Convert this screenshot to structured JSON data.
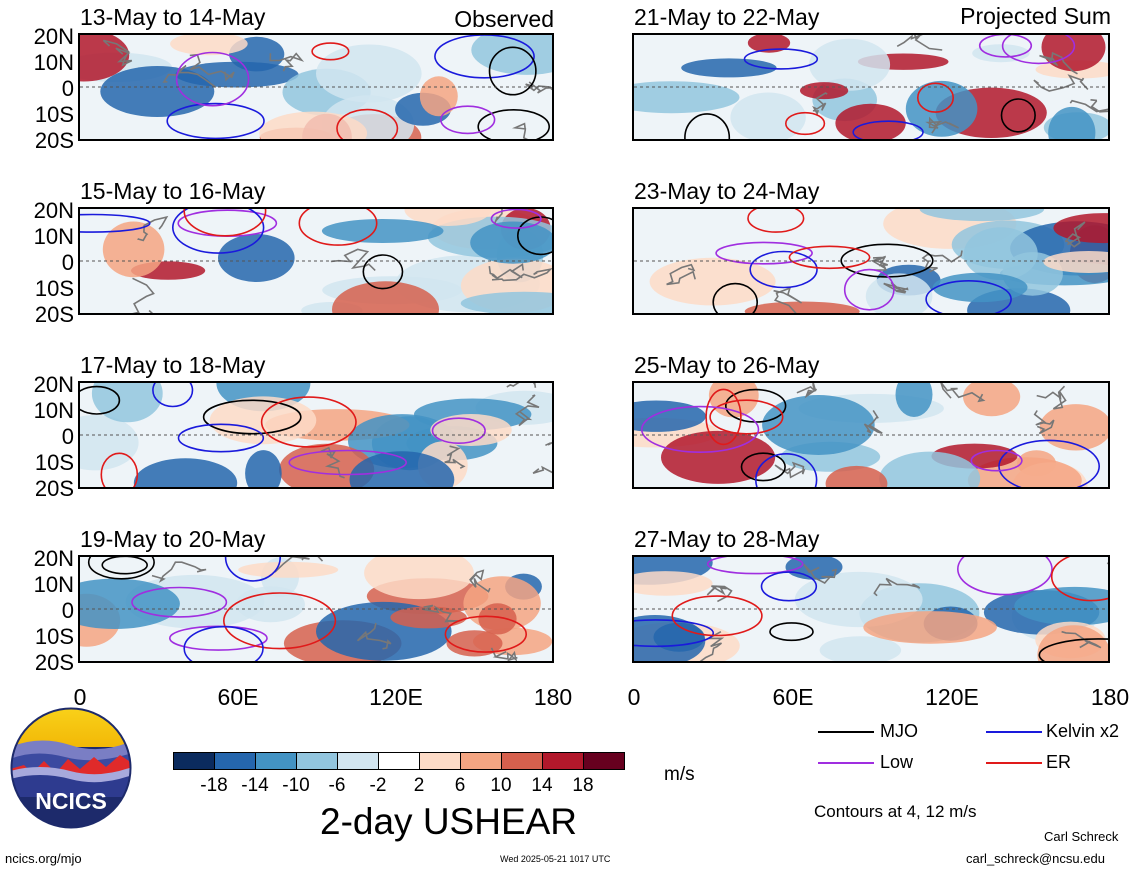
{
  "headers": {
    "left": "Observed",
    "right": "Projected Sum"
  },
  "panels": [
    {
      "title": "13-May to 14-May",
      "column": "left",
      "row": 0
    },
    {
      "title": "15-May to 16-May",
      "column": "left",
      "row": 1
    },
    {
      "title": "17-May to 18-May",
      "column": "left",
      "row": 2
    },
    {
      "title": "19-May to 20-May",
      "column": "left",
      "row": 3
    },
    {
      "title": "21-May to 22-May",
      "column": "right",
      "row": 0
    },
    {
      "title": "23-May to 24-May",
      "column": "right",
      "row": 1
    },
    {
      "title": "25-May to 26-May",
      "column": "right",
      "row": 2
    },
    {
      "title": "27-May to 28-May",
      "column": "right",
      "row": 3
    }
  ],
  "lat_labels": [
    "20N",
    "10N",
    "0",
    "10S",
    "20S"
  ],
  "lon_labels": [
    "0",
    "60E",
    "120E",
    "180"
  ],
  "colorbar": {
    "unit": "m/s",
    "ticks": [
      "-18",
      "-14",
      "-10",
      "-6",
      "-2",
      "2",
      "6",
      "10",
      "14",
      "18"
    ],
    "colors": [
      "#0b2b5e",
      "#2566ad",
      "#4393c4",
      "#92c5de",
      "#d1e5f0",
      "#ffffff",
      "#fddbc7",
      "#f4a582",
      "#d6604d",
      "#b2182b",
      "#67001f"
    ]
  },
  "legend": {
    "items": [
      {
        "label": "MJO",
        "color": "#000000"
      },
      {
        "label": "Kelvin x2",
        "color": "#1a1adc"
      },
      {
        "label": "Low",
        "color": "#a02ee0"
      },
      {
        "label": "ER",
        "color": "#e01a1a"
      }
    ],
    "contours_note": "Contours at 4, 12 m/s"
  },
  "title": "2-day USHEAR",
  "logo": {
    "text": "NCICS"
  },
  "footer": {
    "url": "ncics.org/mjo",
    "timestamp": "Wed 2025-05-21 1017 UTC",
    "author": "Carl Schreck",
    "email": "carl_schreck@ncsu.edu"
  }
}
